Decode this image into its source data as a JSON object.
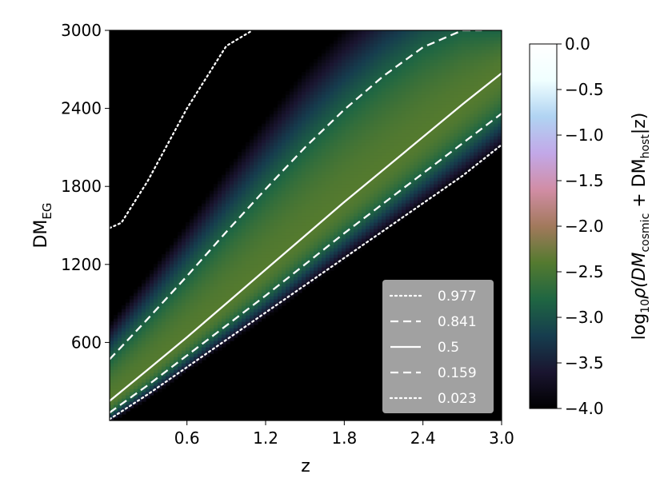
{
  "chart_data": {
    "type": "heatmap",
    "title": "",
    "xlabel": "z",
    "ylabel": "DM",
    "ylabel_sub": "EG",
    "xlim": [
      0.01,
      3.0
    ],
    "ylim": [
      0,
      3000
    ],
    "xticks": [
      0.6,
      1.2,
      1.8,
      2.4,
      3.0
    ],
    "xtick_labels": [
      "0.6",
      "1.2",
      "1.8",
      "2.4",
      "3.0"
    ],
    "yticks": [
      600,
      1200,
      1800,
      2400,
      3000
    ],
    "ytick_labels": [
      "600",
      "1200",
      "1800",
      "2400",
      "3000"
    ],
    "colorbar": {
      "label_parts": [
        "log",
        "10",
        "ρ(DM",
        "cosmic",
        " + DM",
        "host",
        "|z)"
      ],
      "range": [
        -4.0,
        0.0
      ],
      "ticks": [
        0.0,
        -0.5,
        -1.0,
        -1.5,
        -2.0,
        -2.5,
        -3.0,
        -3.5,
        -4.0
      ],
      "tick_labels": [
        "0.0",
        "−0.5",
        "−1.0",
        "−1.5",
        "−2.0",
        "−2.5",
        "−3.0",
        "−3.5",
        "−4.0"
      ],
      "colormap": "cubehelix",
      "colors": [
        "#000000",
        "#1a1530",
        "#163d4e",
        "#1f6642",
        "#547a2f",
        "#a2795c",
        "#d18da5",
        "#c2a8e8",
        "#b0d3f2",
        "#f0ffff",
        "#ffffff"
      ]
    },
    "legend": {
      "placement": "lower-right",
      "entries": [
        {
          "label": "0.977",
          "style": "dotted"
        },
        {
          "label": "0.841",
          "style": "dashed"
        },
        {
          "label": "0.5",
          "style": "solid"
        },
        {
          "label": "0.159",
          "style": "dashed"
        },
        {
          "label": "0.023",
          "style": "dotted"
        }
      ]
    },
    "series": [
      {
        "name": "0.977",
        "style": "dotted",
        "x": [
          0.01,
          0.1,
          0.3,
          0.6,
          0.9,
          1.1
        ],
        "y": [
          1480,
          1520,
          1840,
          2400,
          2880,
          3000
        ]
      },
      {
        "name": "0.841",
        "style": "dashed",
        "x": [
          0.01,
          0.3,
          0.6,
          0.9,
          1.2,
          1.5,
          1.8,
          2.1,
          2.4,
          2.7,
          2.85
        ],
        "y": [
          470,
          780,
          1110,
          1450,
          1780,
          2100,
          2390,
          2650,
          2870,
          3000,
          3000
        ]
      },
      {
        "name": "0.5",
        "style": "solid",
        "x": [
          0.01,
          0.3,
          0.6,
          0.9,
          1.2,
          1.5,
          1.8,
          2.1,
          2.4,
          2.7,
          3.0
        ],
        "y": [
          150,
          390,
          640,
          900,
          1160,
          1420,
          1680,
          1930,
          2180,
          2430,
          2670
        ]
      },
      {
        "name": "0.159",
        "style": "dashed",
        "x": [
          0.01,
          0.3,
          0.6,
          0.9,
          1.2,
          1.5,
          1.8,
          2.1,
          2.4,
          2.7,
          3.0
        ],
        "y": [
          60,
          270,
          500,
          730,
          960,
          1200,
          1440,
          1670,
          1900,
          2130,
          2360
        ]
      },
      {
        "name": "0.023",
        "style": "dotted",
        "x": [
          0.01,
          0.3,
          0.6,
          0.9,
          1.2,
          1.5,
          1.8,
          2.1,
          2.4,
          2.7,
          3.0
        ],
        "y": [
          10,
          200,
          410,
          620,
          830,
          1040,
          1250,
          1460,
          1670,
          1880,
          2120
        ]
      }
    ]
  }
}
